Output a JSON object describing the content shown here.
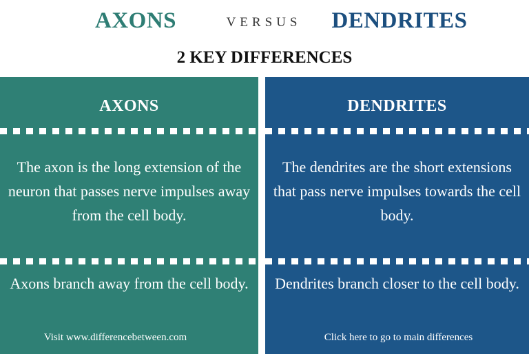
{
  "header": {
    "left_title": "AXONS",
    "versus": "VERSUS",
    "right_title": "DENDRITES",
    "subtitle": "2 KEY DIFFERENCES"
  },
  "colors": {
    "axons_accent": "#2e7d74",
    "axons_panel": "#2f8075",
    "dendrites_accent": "#1c4f7f",
    "dendrites_panel": "#1d5689"
  },
  "columns": {
    "left": {
      "heading": "AXONS",
      "rows": [
        "The axon is the long extension of the neuron that passes nerve impulses away from the cell body.",
        "Axons branch away from the cell body."
      ],
      "footer": "Visit www.differencebetween.com"
    },
    "right": {
      "heading": "DENDRITES",
      "rows": [
        "The dendrites are the short extensions that pass nerve impulses towards the cell body.",
        "Dendrites branch closer to the cell body."
      ],
      "footer": "Click here to go to main differences"
    }
  }
}
